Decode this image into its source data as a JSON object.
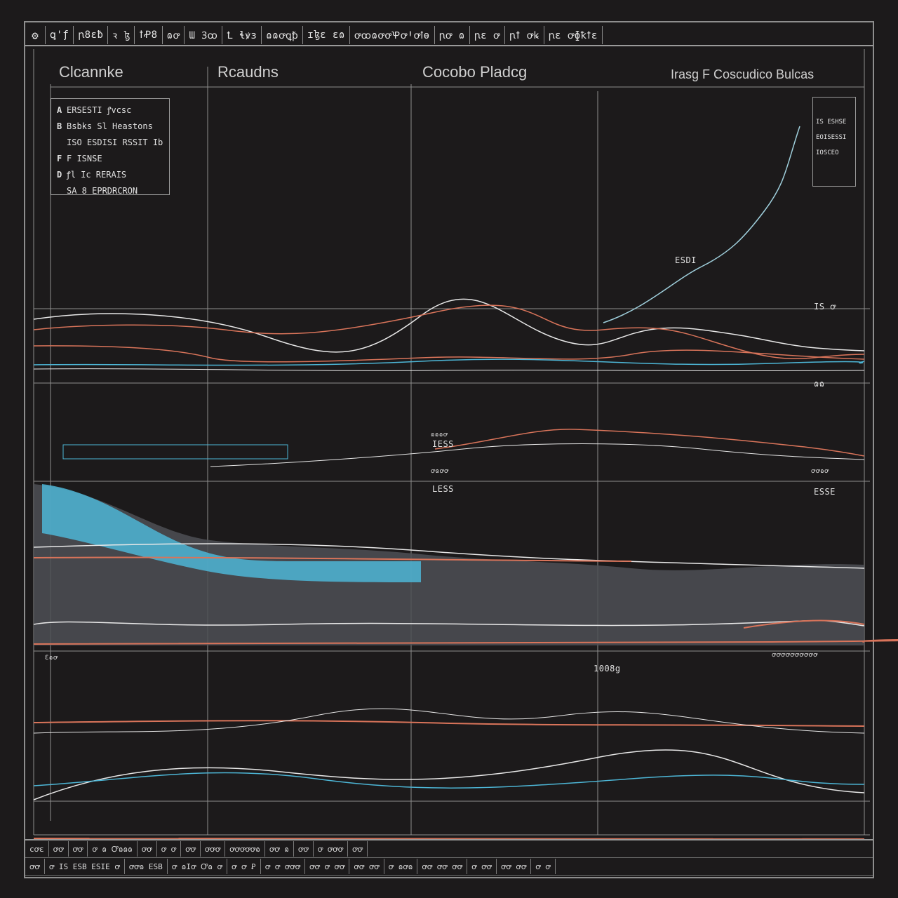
{
  "toolbar": {
    "items": [
      "ꝗ'ƒ",
      "ꞃ8ɛƀ",
      "ꝛ ɮ",
      "ꝉꝒ8",
      "ɷꝍ",
      "Ɯ Ꝫꝏ",
      "Ꝉ ɬꝟɜ",
      "ɷɷꝍꝗꝥ",
      "ɪɮɛ ɛɷ",
      "ꝍꝏɷꝍꝍꝔꝍꞋꝍꝉɵ",
      "ꞃꝍ ɷ",
      "ꞃɛ ꝍ",
      "ꞃꝉ ꝍꝃ",
      "ꞃɛ ꝍɸꝁꝉɛ"
    ],
    "menu_icon": "settings-icon"
  },
  "panels": {
    "left_title": "Clcannke",
    "center_left_title": "Rcaudns",
    "center_title": "Cocobo Pladcg",
    "right_title": "Irasg F Coscudico Bulcas"
  },
  "legend": {
    "rows": [
      {
        "key": "A",
        "label": "ERSESTI ꝭvcsc"
      },
      {
        "key": "B",
        "label": "Bsbks Sl Heastons"
      },
      {
        "key": "",
        "label": "ISO ESDISI  RSSIT Ib"
      },
      {
        "key": "F",
        "label": "F ISNSE"
      },
      {
        "key": "D",
        "label": "ꝭl Ic RERAIS"
      },
      {
        "key": "",
        "label": "SA 8 EPRDRCRON"
      }
    ]
  },
  "minilegend": {
    "rows": [
      "IS ESHSE",
      "EOISESSI",
      "IOSCEO"
    ]
  },
  "tags": {
    "mid_right": "ESDI",
    "mid_right_2": "IS ꝍ",
    "upper_right": "ɷɷ",
    "center_box_1": "ɷɷɷꝍ ",
    "center_box_2": "IESS",
    "center_box_3": "ꝍɷꝍꝍ",
    "center_box_4": "LESS",
    "right_box_1": "ꝍꝍɷꝍ",
    "right_box_2": "ESSE",
    "lower_center": "1008g",
    "lower_right": "ꝍꝍꝍꝍꝍꝍꝍꝍꝍꝍ",
    "lower_left": "Ɛɷꝍ"
  },
  "statusbar": {
    "row1": [
      "cꝍɛ",
      "ꝍꝍ",
      "ꝍꝍ",
      "ꝍ ɷ Ꝍɷɷɷ",
      "ꝍꝍ",
      "ꝍ ꝍ",
      "ꝍꝍ",
      "ꝍꝍꝍ",
      "ꝍꝍꝍꝍꝍɷ",
      "ꝍꝍ ɷ",
      "ꝍꝍ",
      "ꝍ ꝍꝍꝍ",
      "ꝍꝍ"
    ],
    "row2": [
      "ꝍꝍ",
      "ꝍ IS ESB ESIE ꝍ",
      "ꝍꝍɷ ESB",
      "ꝍ ɷIꝍ Ꝍɷ ꝍ",
      "ꝍ ꝍ Ꝑ",
      "ꝍ ꝍ ꝍꝍꝍ",
      "ꝍꝍ ꝍ ꝍꝍ",
      "ꝍꝍ ꝍꝍ",
      "ꝍ ɷꝍɷ",
      "ꝍꝍ ꝍꝍ ꝍꝍ",
      "ꝍ ꝍꝍ",
      "ꝍꝍ ꝍꝍ",
      "ꝍ ꝍ"
    ]
  },
  "colors": {
    "background": "#1c1a1b",
    "grid": "#8e8e8e",
    "blue": "#4db6d6",
    "orange": "#d9745a",
    "white": "#e8e8e8",
    "slate": "#5a5d62"
  }
}
